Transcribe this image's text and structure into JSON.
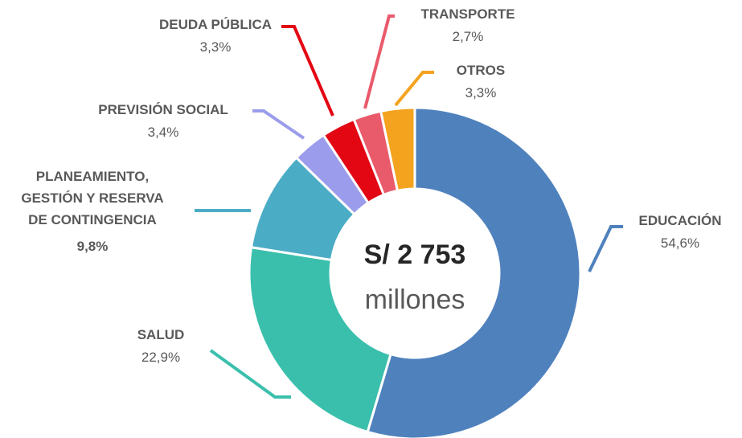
{
  "chart_data": {
    "type": "donut",
    "center_label": "S/ 2 753",
    "center_sublabel": "millones",
    "categories": [
      "EDUCACIÓN",
      "SALUD",
      "PLANEAMIENTO,\nGESTIÓN Y RESERVA\nDE CONTINGENCIA",
      "PREVISIÓN SOCIAL",
      "DEUDA PÚBLICA",
      "TRANSPORTE",
      "OTROS"
    ],
    "values": [
      54.6,
      22.9,
      9.8,
      3.4,
      3.3,
      2.7,
      3.3
    ],
    "value_labels": [
      "54,6%",
      "22,9%",
      "9,8%",
      "3,4%",
      "3,3%",
      "2,7%",
      "3,3%"
    ],
    "colors": [
      "#4f81bd",
      "#3bbfad",
      "#4bacc6",
      "#9b9ceb",
      "#e30613",
      "#e95a6b",
      "#f4a31f"
    ]
  }
}
